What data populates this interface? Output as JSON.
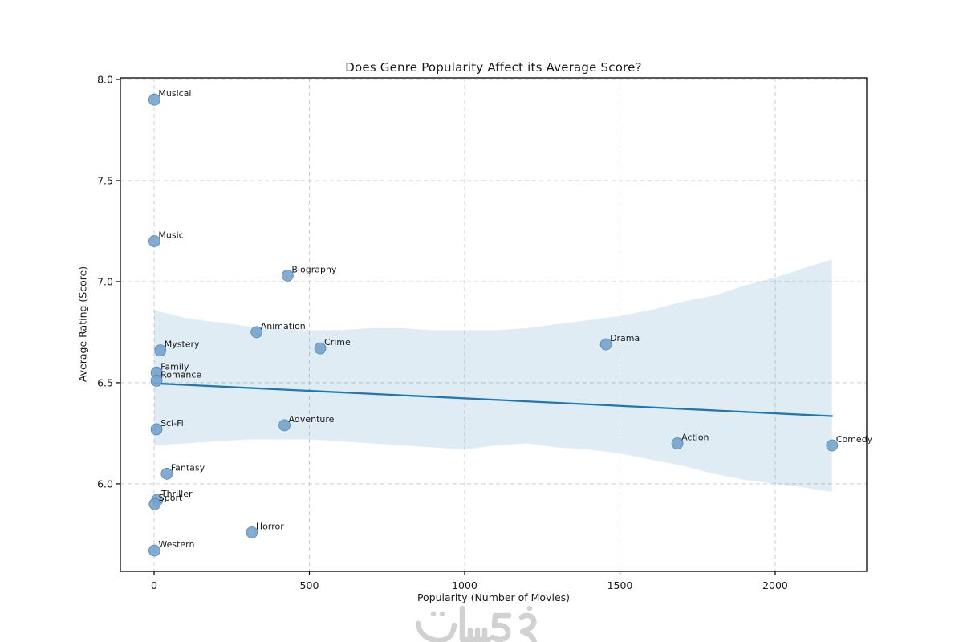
{
  "chart_data": {
    "type": "scatter",
    "title": "Does Genre Popularity Affect its Average Score?",
    "xlabel": "Popularity (Number of Movies)",
    "ylabel": "Average Rating (Score)",
    "xlim": [
      -108.5,
      2294.6
    ],
    "ylim": [
      5.567,
      8.008
    ],
    "x_ticks": [
      0,
      500,
      1000,
      1500,
      2000
    ],
    "y_ticks": [
      6.0,
      6.5,
      7.0,
      7.5,
      8.0
    ],
    "grid": true,
    "legend_position": "none",
    "points": [
      {
        "label": "Musical",
        "x": 1,
        "y": 7.9
      },
      {
        "label": "Music",
        "x": 1,
        "y": 7.2
      },
      {
        "label": "Biography",
        "x": 430,
        "y": 7.03
      },
      {
        "label": "Animation",
        "x": 330,
        "y": 6.75
      },
      {
        "label": "Drama",
        "x": 1455,
        "y": 6.69
      },
      {
        "label": "Crime",
        "x": 535,
        "y": 6.67
      },
      {
        "label": "Mystery",
        "x": 20,
        "y": 6.66
      },
      {
        "label": "Family",
        "x": 8,
        "y": 6.55
      },
      {
        "label": "Romance",
        "x": 8,
        "y": 6.51
      },
      {
        "label": "Adventure",
        "x": 420,
        "y": 6.29
      },
      {
        "label": "Sci-Fi",
        "x": 8,
        "y": 6.27
      },
      {
        "label": "Action",
        "x": 1685,
        "y": 6.2
      },
      {
        "label": "Comedy",
        "x": 2183,
        "y": 6.19
      },
      {
        "label": "Fantasy",
        "x": 41,
        "y": 6.05
      },
      {
        "label": "Thriller",
        "x": 10,
        "y": 5.92
      },
      {
        "label": "Sport",
        "x": 2,
        "y": 5.9
      },
      {
        "label": "Horror",
        "x": 315,
        "y": 5.76
      },
      {
        "label": "Western",
        "x": 1,
        "y": 5.67
      }
    ],
    "regression_line": {
      "x0": 0,
      "y0": 6.497,
      "x1": 2183,
      "y1": 6.335
    },
    "confidence_band": {
      "x": [
        0,
        100,
        200,
        300,
        400,
        500,
        600,
        700,
        800,
        900,
        1000,
        1100,
        1200,
        1300,
        1400,
        1500,
        1600,
        1700,
        1800,
        1900,
        2000,
        2100,
        2183
      ],
      "upper": [
        6.86,
        6.82,
        6.8,
        6.78,
        6.77,
        6.76,
        6.76,
        6.77,
        6.77,
        6.76,
        6.76,
        6.76,
        6.77,
        6.79,
        6.81,
        6.83,
        6.86,
        6.9,
        6.93,
        6.98,
        7.02,
        7.07,
        7.11
      ],
      "lower": [
        6.19,
        6.2,
        6.21,
        6.22,
        6.22,
        6.22,
        6.21,
        6.2,
        6.19,
        6.18,
        6.17,
        6.19,
        6.2,
        6.18,
        6.17,
        6.15,
        6.12,
        6.09,
        6.05,
        6.02,
        6.0,
        5.98,
        5.96
      ]
    },
    "colors": {
      "point_fill": "#74a3cc",
      "point_edge": "#5688b8",
      "regression_line": "#2077b4",
      "band_fill": "#1f77b4",
      "band_opacity": 0.14,
      "grid": "#cdcdcd",
      "axis": "#000000",
      "text": "#1a1a1a"
    }
  },
  "watermark": {
    "text": "خمسات",
    "color": "#c9c9c9"
  }
}
